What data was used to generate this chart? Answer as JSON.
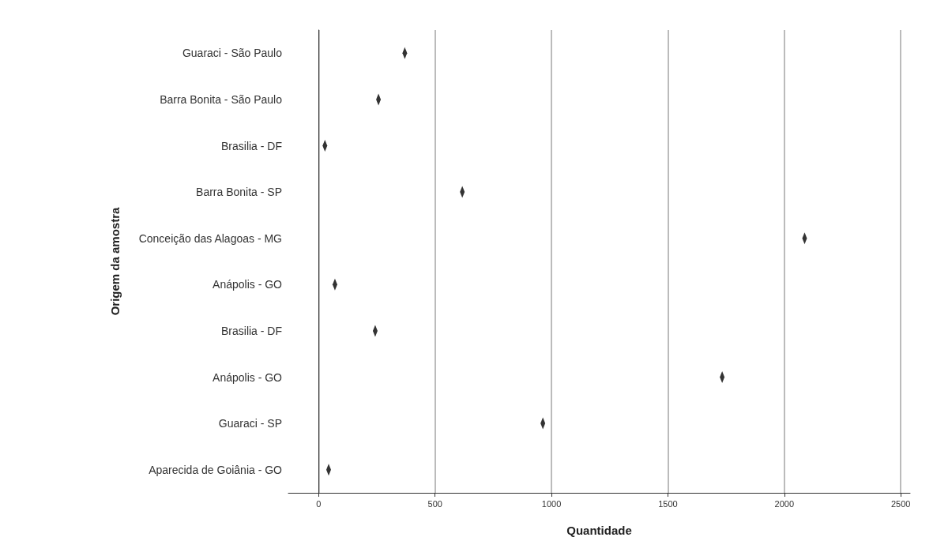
{
  "chart_data": {
    "type": "scatter",
    "orientation": "horizontal",
    "xlabel": "Quantidade",
    "ylabel": "Origem da amostra",
    "categories": [
      "Guaraci - São Paulo",
      "Barra Bonita - São Paulo",
      "Brasilia - DF",
      "Barra Bonita - SP",
      "Conceição das Alagoas - MG",
      "Anápolis - GO",
      "Brasilia - DF",
      "Anápolis - GO",
      "Guaraci - SP",
      "Aparecida de Goiânia - GO"
    ],
    "series": [
      {
        "color": "#000000",
        "values": [
          370,
          257,
          27,
          617,
          2087,
          70,
          243,
          1733,
          963,
          43
        ]
      }
    ],
    "xlim": [
      -130,
      2540
    ],
    "xticks": [
      0,
      500,
      1000,
      1500,
      2000,
      2500
    ],
    "grid": "x"
  }
}
